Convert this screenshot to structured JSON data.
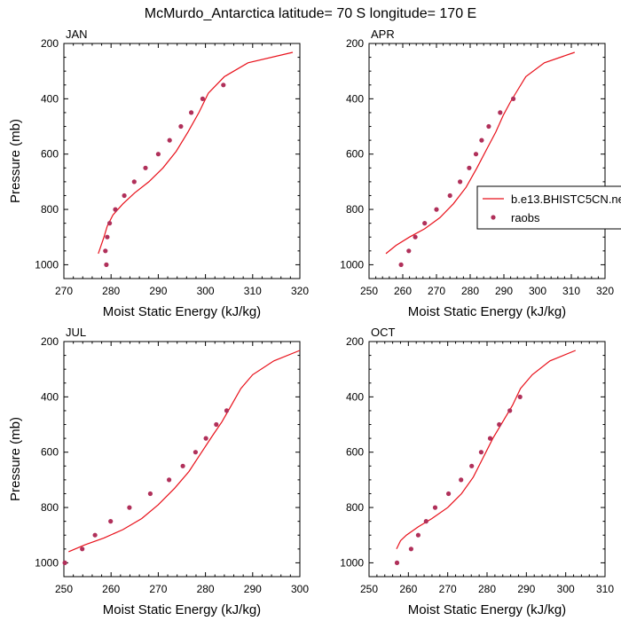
{
  "title": "McMurdo_Antarctica  latitude= 70 S longitude= 170 E",
  "colors": {
    "model": "#e8101a",
    "obs": "#b0305a",
    "axis": "#000000"
  },
  "legend": {
    "model_label": "b.e13.BHISTC5CN.ne",
    "obs_label": "raobs",
    "placement": "right-of-APR-panel"
  },
  "chart_data": [
    {
      "type": "line+scatter",
      "panel": "JAN",
      "title": "JAN",
      "xlabel": "Moist Static Energy (kJ/kg)",
      "ylabel": "Pressure (mb)",
      "xlim": [
        270,
        320
      ],
      "ylim": [
        1050,
        200
      ],
      "y_axis": "inverted",
      "xticks": [
        270,
        280,
        290,
        300,
        310,
        320
      ],
      "yticks": [
        200,
        400,
        600,
        800,
        1000
      ],
      "series": [
        {
          "name": "b.e13.BHISTC5CN.ne",
          "kind": "line",
          "x": [
            277.3,
            277.9,
            278.5,
            279.2,
            280.4,
            282.5,
            285.0,
            288.0,
            291.0,
            293.8,
            296.3,
            298.6,
            300.6,
            304.0,
            309.0,
            318.5
          ],
          "y": [
            960,
            930,
            900,
            860,
            820,
            780,
            740,
            700,
            650,
            590,
            520,
            450,
            380,
            320,
            270,
            232
          ]
        },
        {
          "name": "raobs",
          "kind": "scatter",
          "x": [
            279.0,
            278.8,
            279.2,
            279.7,
            280.9,
            282.8,
            284.9,
            287.3,
            290.0,
            292.4,
            294.8,
            297.0,
            299.4,
            303.8
          ],
          "y": [
            1000,
            950,
            900,
            850,
            800,
            750,
            700,
            650,
            600,
            550,
            500,
            450,
            400,
            350
          ]
        }
      ]
    },
    {
      "type": "line+scatter",
      "panel": "APR",
      "title": "APR",
      "xlabel": "Moist Static Energy (kJ/kg)",
      "ylabel": "",
      "xlim": [
        250,
        320
      ],
      "ylim": [
        1050,
        200
      ],
      "y_axis": "inverted",
      "xticks": [
        250,
        260,
        270,
        280,
        290,
        300,
        310,
        320
      ],
      "yticks": [
        200,
        400,
        600,
        800,
        1000
      ],
      "series": [
        {
          "name": "b.e13.BHISTC5CN.ne",
          "kind": "line",
          "x": [
            255.0,
            258.0,
            262.0,
            266.5,
            271.0,
            275.0,
            278.8,
            282.0,
            285.0,
            287.6,
            289.8,
            292.0,
            294.0,
            296.5,
            302.0,
            311.0
          ],
          "y": [
            960,
            930,
            900,
            870,
            830,
            780,
            720,
            650,
            580,
            520,
            460,
            410,
            370,
            320,
            270,
            232
          ]
        },
        {
          "name": "raobs",
          "kind": "scatter",
          "x": [
            259.5,
            261.8,
            263.7,
            266.5,
            270.0,
            274.0,
            277.0,
            279.7,
            281.7,
            283.4,
            285.5,
            288.9,
            292.8
          ],
          "y": [
            1000,
            950,
            900,
            850,
            800,
            750,
            700,
            650,
            600,
            550,
            500,
            450,
            400
          ]
        }
      ]
    },
    {
      "type": "line+scatter",
      "panel": "JUL",
      "title": "JUL",
      "xlabel": "Moist Static Energy (kJ/kg)",
      "ylabel": "Pressure (mb)",
      "xlim": [
        250,
        300
      ],
      "ylim": [
        1050,
        200
      ],
      "y_axis": "inverted",
      "xticks": [
        250,
        260,
        270,
        280,
        290,
        300
      ],
      "yticks": [
        200,
        400,
        600,
        800,
        1000
      ],
      "series": [
        {
          "name": "b.e13.BHISTC5CN.ne",
          "kind": "line",
          "x": [
            251.0,
            254.5,
            258.5,
            262.5,
            266.5,
            270.0,
            273.5,
            276.5,
            279.2,
            281.5,
            283.5,
            285.5,
            287.5,
            290.0,
            294.5,
            300.0
          ],
          "y": [
            960,
            935,
            910,
            880,
            840,
            790,
            730,
            670,
            600,
            540,
            490,
            430,
            370,
            320,
            270,
            232
          ]
        },
        {
          "name": "raobs",
          "kind": "scatter",
          "x": [
            250.2,
            253.9,
            256.6,
            259.9,
            263.9,
            268.3,
            272.3,
            275.2,
            277.9,
            280.1,
            282.3,
            284.5
          ],
          "y": [
            1000,
            950,
            900,
            850,
            800,
            750,
            700,
            650,
            600,
            550,
            500,
            450
          ]
        }
      ]
    },
    {
      "type": "line+scatter",
      "panel": "OCT",
      "title": "OCT",
      "xlabel": "Moist Static Energy (kJ/kg)",
      "ylabel": "",
      "xlim": [
        250,
        310
      ],
      "ylim": [
        1050,
        200
      ],
      "y_axis": "inverted",
      "xticks": [
        250,
        260,
        270,
        280,
        290,
        300,
        310
      ],
      "yticks": [
        200,
        400,
        600,
        800,
        1000
      ],
      "series": [
        {
          "name": "b.e13.BHISTC5CN.ne",
          "kind": "line",
          "x": [
            257.0,
            258.0,
            259.5,
            262.5,
            266.0,
            270.0,
            273.5,
            276.5,
            279.0,
            281.5,
            284.0,
            286.5,
            288.5,
            291.5,
            296.0,
            302.5
          ],
          "y": [
            950,
            920,
            900,
            870,
            840,
            800,
            750,
            690,
            620,
            550,
            490,
            430,
            370,
            320,
            270,
            232
          ]
        },
        {
          "name": "raobs",
          "kind": "scatter",
          "x": [
            257.1,
            260.7,
            262.5,
            264.5,
            266.8,
            270.2,
            273.4,
            276.1,
            278.5,
            280.8,
            283.1,
            285.8,
            288.4
          ],
          "y": [
            1000,
            950,
            900,
            850,
            800,
            750,
            700,
            650,
            600,
            550,
            500,
            450,
            400
          ]
        }
      ]
    }
  ]
}
